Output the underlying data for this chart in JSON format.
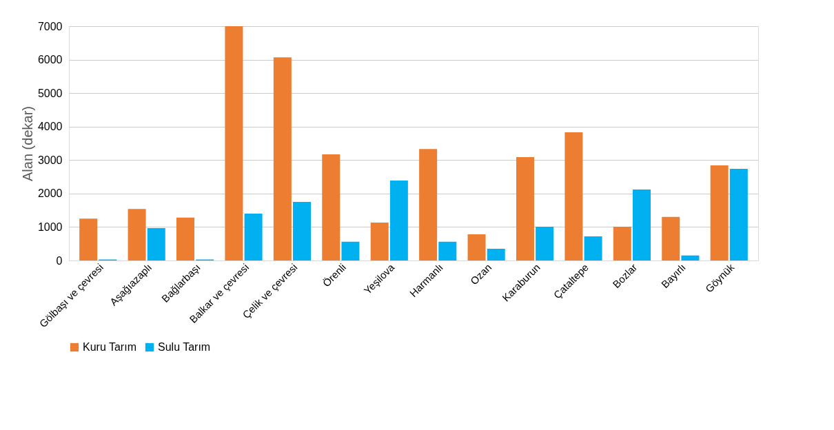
{
  "chart_data": {
    "type": "bar",
    "ylabel": "Alan (dekar)",
    "categories": [
      "Gölbaşı ve çevresi",
      "Aşağıazaplı",
      "Bağlarbaşı",
      "Balkar ve çevresi",
      "Çelik ve çevresi",
      "Örenli",
      "Yeşilova",
      "Harmanlı",
      "Ozan",
      "Karaburun",
      "Çataltepe",
      "Bozlar",
      "Bayırlı",
      "Göynük"
    ],
    "series": [
      {
        "name": "Kuru Tarım",
        "color": "#ed7d31",
        "values": [
          1250,
          1540,
          1280,
          7000,
          6070,
          3170,
          1130,
          3330,
          780,
          3090,
          3830,
          1010,
          1300,
          2840
        ]
      },
      {
        "name": "Sulu Tarım",
        "color": "#00b0f0",
        "values": [
          30,
          970,
          30,
          1400,
          1750,
          560,
          2390,
          560,
          350,
          1010,
          720,
          2120,
          150,
          2740
        ]
      }
    ],
    "ylim": [
      0,
      7000
    ],
    "yticks": [
      0,
      1000,
      2000,
      3000,
      4000,
      5000,
      6000,
      7000
    ],
    "grid": "y",
    "legend": "bottom"
  }
}
